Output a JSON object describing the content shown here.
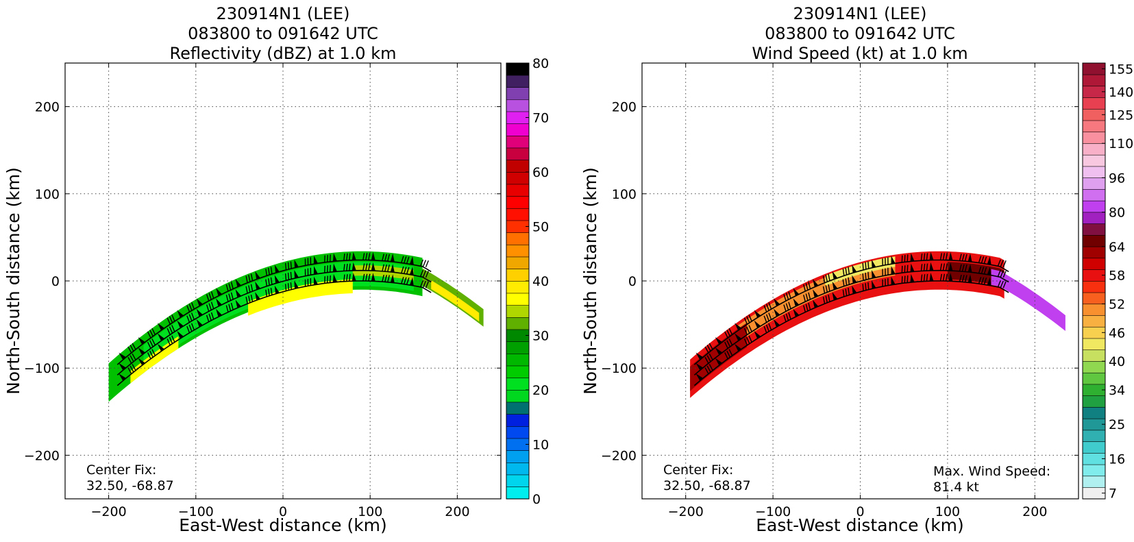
{
  "left_panel": {
    "title_lines": [
      "230914N1 (LEE)",
      "083800 to 091642 UTC",
      "Reflectivity (dBZ) at 1.0 km"
    ],
    "xlabel": "East-West distance (km)",
    "ylabel": "North-South distance (km)",
    "x_ticks": [
      "−200",
      "−100",
      "0",
      "100",
      "200"
    ],
    "y_ticks": [
      "200",
      "100",
      "0",
      "−100",
      "−200"
    ],
    "annotation_lines": [
      "Center Fix:",
      "32.50, -68.87"
    ],
    "colorbar_ticks": [
      "80",
      "70",
      "60",
      "50",
      "40",
      "30",
      "20",
      "10",
      "0"
    ]
  },
  "right_panel": {
    "title_lines": [
      "230914N1 (LEE)",
      "083800 to 091642 UTC",
      "Wind Speed (kt) at 1.0 km"
    ],
    "xlabel": "East-West distance (km)",
    "ylabel": "North-South distance (km)",
    "x_ticks": [
      "−200",
      "−100",
      "0",
      "100",
      "200"
    ],
    "y_ticks": [
      "200",
      "100",
      "0",
      "−100",
      "−200"
    ],
    "annotation_lines": [
      "Center Fix:",
      "32.50, -68.87"
    ],
    "max_wind_lines": [
      "Max. Wind Speed:",
      "81.4 kt"
    ],
    "colorbar_ticks": [
      "155",
      "140",
      "125",
      "110",
      "96",
      "80",
      "64",
      "58",
      "52",
      "46",
      "40",
      "34",
      "25",
      "16",
      "7"
    ]
  },
  "chart_data": [
    {
      "type": "heatmap",
      "title": "230914N1 (LEE) 083800 to 091642 UTC Reflectivity (dBZ) at 1.0 km",
      "xlabel": "East-West distance (km)",
      "ylabel": "North-South distance (km)",
      "xlim": [
        -250,
        250
      ],
      "ylim": [
        -250,
        250
      ],
      "grid": true,
      "colorbar": {
        "min": 0,
        "max": 80,
        "step": 2.5,
        "tick_values": [
          0,
          10,
          20,
          30,
          40,
          50,
          60,
          70,
          80
        ],
        "colors": [
          "#00eeee",
          "#00d5ee",
          "#00b8ee",
          "#00a0f0",
          "#0070f0",
          "#0048f0",
          "#0020e0",
          "#007070",
          "#00d820",
          "#00e020",
          "#00cc00",
          "#00b800",
          "#00a000",
          "#008800",
          "#60b000",
          "#b0d800",
          "#ffff00",
          "#ffec00",
          "#ffd000",
          "#f0a800",
          "#ff9000",
          "#ff7000",
          "#ff3000",
          "#ff1000",
          "#ff0000",
          "#e80000",
          "#d00000",
          "#c00000",
          "#c80040",
          "#e0007a",
          "#f000d0",
          "#e020f0",
          "#b850e0",
          "#8040b0",
          "#402060",
          "#000000"
        ]
      },
      "swath_fill_dBZ": "green-yellow (20-40)",
      "center_fix": [
        32.5,
        -68.87
      ]
    },
    {
      "type": "heatmap",
      "title": "230914N1 (LEE) 083800 to 091642 UTC Wind Speed (kt) at 1.0 km",
      "xlabel": "East-West distance (km)",
      "ylabel": "North-South distance (km)",
      "xlim": [
        -250,
        250
      ],
      "ylim": [
        -250,
        250
      ],
      "grid": true,
      "colorbar": {
        "tick_values": [
          7,
          16,
          25,
          34,
          40,
          46,
          52,
          58,
          64,
          80,
          96,
          110,
          125,
          140,
          155
        ],
        "colors": [
          "#f0f0f0",
          "#b0f0f0",
          "#80ecec",
          "#60e0e0",
          "#40cccc",
          "#30b0b0",
          "#209898",
          "#108080",
          "#20a040",
          "#30b030",
          "#60c840",
          "#90d850",
          "#c8e060",
          "#f0e860",
          "#f8d050",
          "#f8b040",
          "#f89030",
          "#f86020",
          "#f83010",
          "#e81010",
          "#d00000",
          "#a00000",
          "#700000",
          "#801040",
          "#a020c0",
          "#c040f0",
          "#d070f0",
          "#e0a0f0",
          "#f0c0f0",
          "#f8c8e0",
          "#f8b0c8",
          "#f890a0",
          "#f87880",
          "#f06060",
          "#e84050",
          "#c82848",
          "#b01838",
          "#901030"
        ]
      },
      "max_wind_speed_kt": 81.4,
      "center_fix": [
        32.5,
        -68.87
      ]
    }
  ]
}
